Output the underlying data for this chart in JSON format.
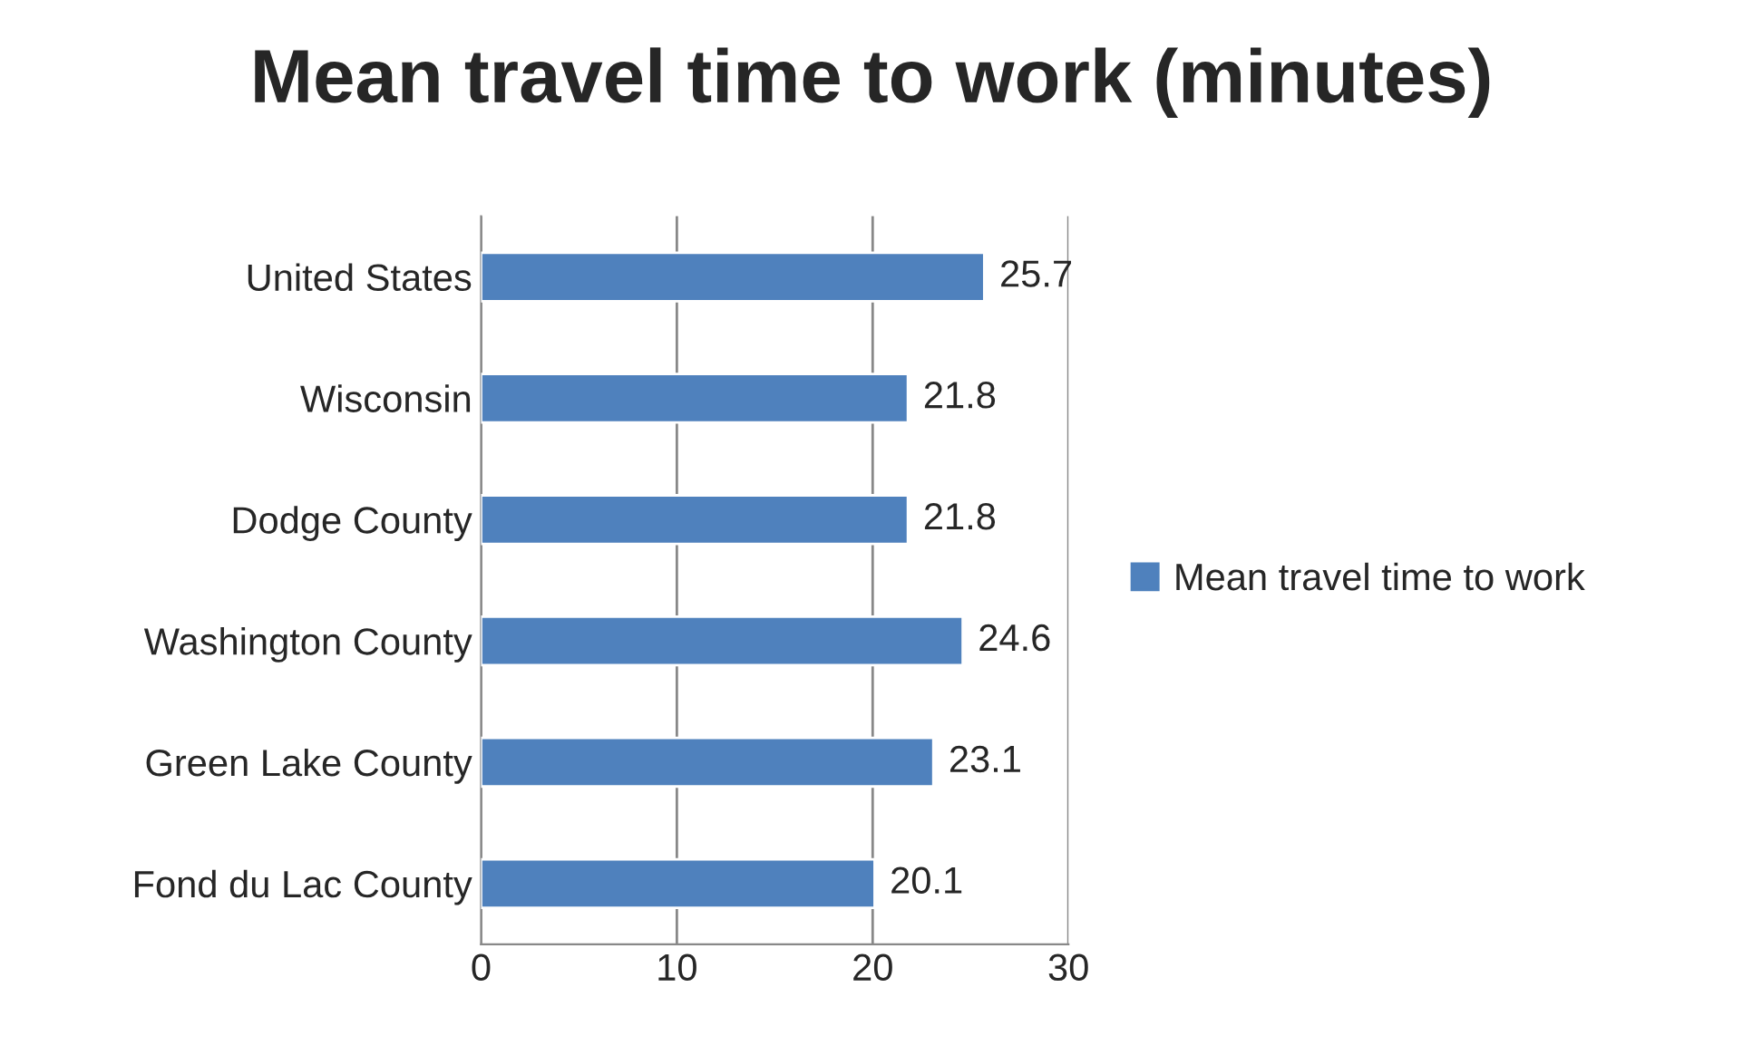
{
  "chart_data": {
    "type": "bar",
    "orientation": "horizontal",
    "title": "Mean travel time to work (minutes)",
    "categories": [
      "United States",
      "Wisconsin",
      "Dodge County",
      "Washington County",
      "Green Lake County",
      "Fond du Lac County"
    ],
    "series": [
      {
        "name": "Mean travel time to work",
        "color": "#4f81bd",
        "values": [
          25.7,
          21.8,
          21.8,
          24.6,
          23.1,
          20.1
        ]
      }
    ],
    "xlim": [
      0,
      30
    ],
    "xticks": [
      0,
      10,
      20,
      30
    ],
    "grid": "x",
    "legend": "right",
    "data_labels": true
  }
}
